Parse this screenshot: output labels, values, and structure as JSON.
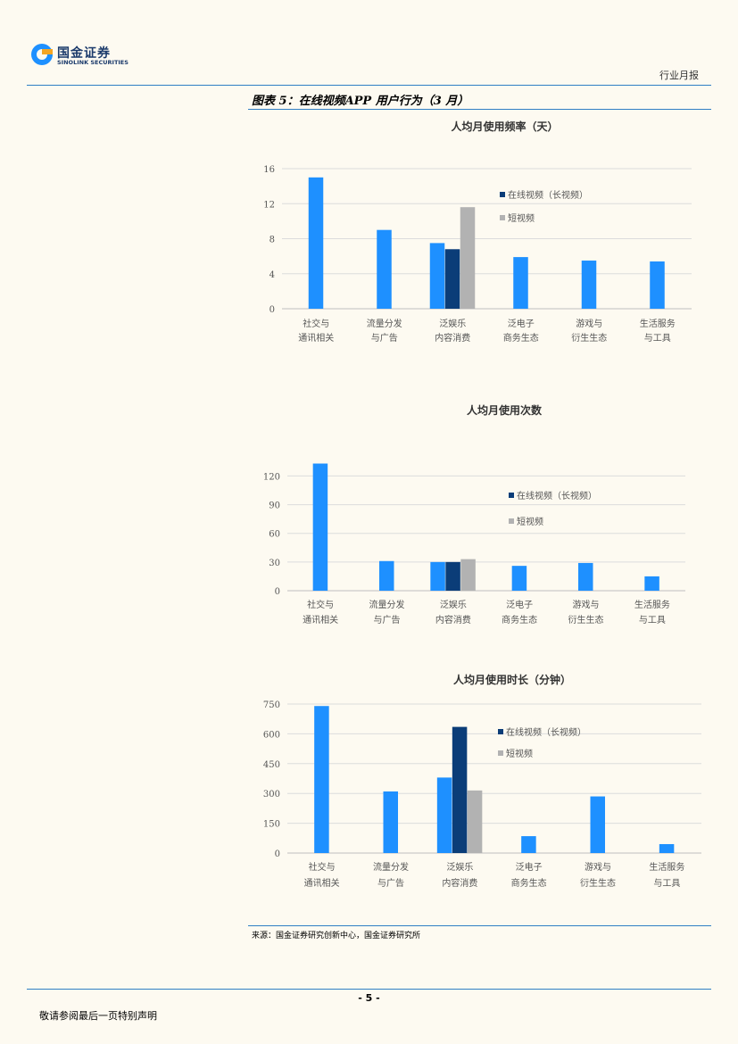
{
  "header": {
    "logo_cn": "国金证券",
    "logo_en": "SINOLINK SECURITIES",
    "report_type": "行业月报"
  },
  "figure_title": "图表 5：在线视频APP 用户行为（3 月）",
  "source": "来源：国金证券研究创新中心，国金证券研究所",
  "footer": {
    "page": "- 5 -",
    "note": "敬请参阅最后一页特别声明"
  },
  "colors": {
    "rule": "#2f7fc4",
    "series_main": "#1e90ff",
    "series_long": "#0b3d78",
    "series_short": "#b2b2b2"
  },
  "chart_data": [
    {
      "type": "bar",
      "title": "人均月使用频率（天）",
      "categories": [
        [
          "社交与",
          "通讯相关"
        ],
        [
          "流量分发",
          "与广告"
        ],
        [
          "泛娱乐",
          "内容消费"
        ],
        [
          "泛电子",
          "商务生态"
        ],
        [
          "游戏与",
          "衍生生态"
        ],
        [
          "生活服务",
          "与工具"
        ]
      ],
      "series": [
        {
          "values": [
            15.0,
            9.0,
            7.5,
            5.9,
            5.5,
            5.4
          ]
        },
        {
          "name": "在线视频（长视频）",
          "values": [
            null,
            null,
            6.8,
            null,
            null,
            null
          ]
        },
        {
          "name": "短视频",
          "values": [
            null,
            null,
            11.6,
            null,
            null,
            null
          ]
        }
      ],
      "yticks": [
        0,
        4,
        8,
        12,
        16
      ],
      "ylim": [
        0,
        16
      ],
      "grid": true,
      "legend": "top-right"
    },
    {
      "type": "bar",
      "title": "人均月使用次数",
      "categories": [
        [
          "社交与",
          "通讯相关"
        ],
        [
          "流量分发",
          "与广告"
        ],
        [
          "泛娱乐",
          "内容消费"
        ],
        [
          "泛电子",
          "商务生态"
        ],
        [
          "游戏与",
          "衍生生态"
        ],
        [
          "生活服务",
          "与工具"
        ]
      ],
      "series": [
        {
          "values": [
            133,
            31,
            30,
            26,
            29,
            15
          ]
        },
        {
          "name": "在线视频（长视频）",
          "values": [
            null,
            null,
            30,
            null,
            null,
            null
          ]
        },
        {
          "name": "短视频",
          "values": [
            null,
            null,
            33,
            null,
            null,
            null
          ]
        }
      ],
      "yticks": [
        0,
        30,
        60,
        90,
        120
      ],
      "ylim": [
        0,
        140
      ],
      "grid": true,
      "legend": "top-right"
    },
    {
      "type": "bar",
      "title": "人均月使用时长（分钟）",
      "categories": [
        [
          "社交与",
          "通讯相关"
        ],
        [
          "流量分发",
          "与广告"
        ],
        [
          "泛娱乐",
          "内容消费"
        ],
        [
          "泛电子",
          "商务生态"
        ],
        [
          "游戏与",
          "衍生生态"
        ],
        [
          "生活服务",
          "与工具"
        ]
      ],
      "series": [
        {
          "values": [
            740,
            310,
            380,
            85,
            285,
            45
          ]
        },
        {
          "name": "在线视频（长视频）",
          "values": [
            null,
            null,
            635,
            null,
            null,
            null
          ]
        },
        {
          "name": "短视频",
          "values": [
            null,
            null,
            315,
            null,
            null,
            null
          ]
        }
      ],
      "yticks": [
        0,
        150,
        300,
        450,
        600,
        750
      ],
      "ylim": [
        0,
        750
      ],
      "grid": true,
      "legend": "top-right"
    }
  ]
}
